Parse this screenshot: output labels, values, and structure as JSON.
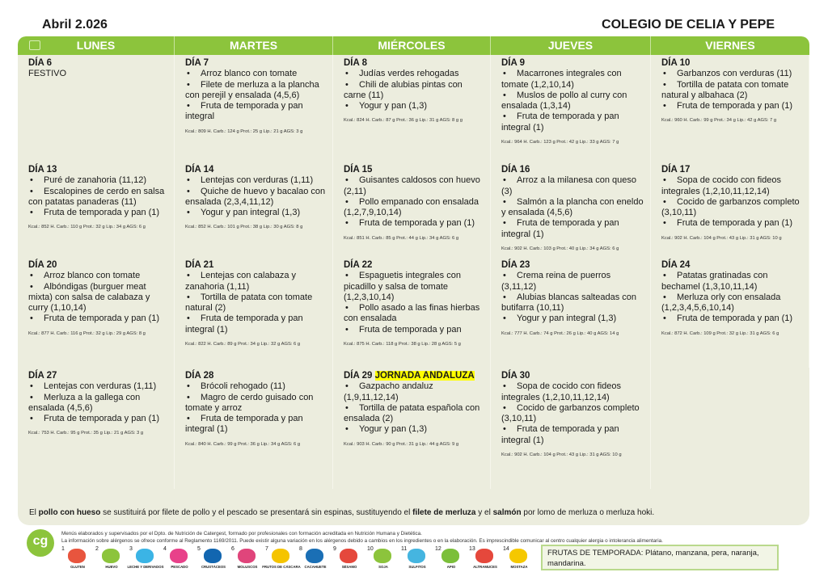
{
  "header": {
    "month": "Abril 2.026",
    "school": "COLEGIO DE CELIA Y PEPE"
  },
  "days_header": [
    "LUNES",
    "MARTES",
    "MIÉRCOLES",
    "JUEVES",
    "VIERNES"
  ],
  "weeks": [
    [
      {
        "day": "DÍA 6",
        "note": "FESTIVO",
        "dishes": [],
        "nutrition": ""
      },
      {
        "day": "DÍA 7",
        "dishes": [
          "Arroz blanco con tomate",
          "Filete de merluza a la plancha con perejil y ensalada (4,5,6)",
          "Fruta de temporada y pan integral"
        ],
        "nutrition": "Kcal.: 809 H. Carb.: 124 g Prot.: 25 g Lip.: 21 g AGS: 3 g"
      },
      {
        "day": "DÍA 8",
        "dishes": [
          "Judías verdes rehogadas",
          "Chili de alubias pintas con carne (11)",
          "Yogur y pan (1,3)"
        ],
        "nutrition": "Kcal.: 824 H. Carb.: 87 g Prot.: 36 g Lip.: 31 g AGS: 8 g g"
      },
      {
        "day": "DÍA 9",
        "dishes": [
          "Macarrones integrales con tomate (1,2,10,14)",
          "Muslos de pollo al curry con ensalada (1,3,14)",
          "Fruta de temporada y pan integral (1)"
        ],
        "nutrition": "Kcal.: 964 H. Carb.: 123 g Prot.: 42 g Lip.: 33 g AGS: 7 g"
      },
      {
        "day": "DÍA 10",
        "dishes": [
          "Garbanzos con verduras (11)",
          "Tortilla de patata con tomate natural y albahaca (2)",
          "Fruta de temporada y pan (1)"
        ],
        "nutrition": "Kcal.: 960 H. Carb.: 99 g Prot.: 34 g Lip.: 42 g AGS: 7 g"
      }
    ],
    [
      {
        "day": "DÍA 13",
        "dishes": [
          "Puré de zanahoria (11,12)",
          "Escalopines de cerdo en salsa con patatas panaderas (11)",
          "Fruta de temporada y pan (1)"
        ],
        "nutrition": "Kcal.: 852 H. Carb.: 110 g Prot.: 32 g Lip.: 34 g AGS: 6 g"
      },
      {
        "day": "DÍA 14",
        "dishes": [
          "Lentejas con verduras (1,11)",
          "Quiche de huevo y bacalao con ensalada (2,3,4,11,12)",
          "Yogur y pan integral (1,3)"
        ],
        "nutrition": "Kcal.: 852 H. Carb.: 101 g Prot.: 38 g Lip.: 30 g AGS: 8 g"
      },
      {
        "day": "DÍA 15",
        "dishes": [
          "Guisantes caldosos con huevo (2,11)",
          "Pollo empanado con ensalada (1,2,7,9,10,14)",
          "Fruta de temporada y pan (1)"
        ],
        "nutrition": "Kcal.: 851 H. Carb.: 85 g Prot.: 44 g Lip.: 34 g AGS: 6 g"
      },
      {
        "day": "DÍA 16",
        "dishes": [
          "Arroz a la milanesa con queso (3)",
          "Salmón a la plancha con eneldo y ensalada  (4,5,6)",
          "Fruta de temporada y pan integral (1)"
        ],
        "nutrition": "Kcal.: 902 H. Carb.: 103 g Prot.: 40 g Lip.: 34 g AGS: 6 g"
      },
      {
        "day": "DÍA 17",
        "dishes": [
          "Sopa de cocido con fideos integrales (1,2,10,11,12,14)",
          "Cocido de garbanzos completo (3,10,11)",
          "Fruta de temporada y pan (1)"
        ],
        "nutrition": "Kcal.: 902 H. Carb.: 104 g Prot.: 43 g Lip.: 31 g AGS: 10 g"
      }
    ],
    [
      {
        "day": "DÍA 20",
        "dishes": [
          "Arroz blanco con tomate",
          "Albóndigas (burguer meat mixta) con salsa de calabaza y curry (1,10,14)",
          "Fruta de temporada y pan (1)"
        ],
        "nutrition": "Kcal.: 877 H. Carb.: 116 g Prot.: 32 g Lip.: 29 g AGS: 8 g"
      },
      {
        "day": "DÍA 21",
        "dishes": [
          "Lentejas con calabaza y zanahoria (1,11)",
          "Tortilla de patata con tomate natural (2)",
          "Fruta de temporada y pan integral (1)"
        ],
        "nutrition": "Kcal.: 822 H. Carb.: 89 g Prot.: 34 g Lip.: 32 g AGS: 6 g"
      },
      {
        "day": "DÍA 22",
        "dishes": [
          "Espaguetis integrales con picadillo y salsa de tomate (1,2,3,10,14)",
          "Pollo asado a las finas hierbas con ensalada",
          "Fruta de temporada y pan"
        ],
        "nutrition": "Kcal.: 875 H. Carb.: 118 g Prot.: 38 g Lip.: 28 g AGS: 5 g"
      },
      {
        "day": "DÍA 23",
        "dishes": [
          "Crema reina de puerros (3,11,12)",
          "Alubias blancas salteadas con butifarra (10,11)",
          "Yogur y pan integral (1,3)"
        ],
        "nutrition": "Kcal.: 777 H. Carb.: 74 g Prot.: 26 g Lip.: 40 g AGS: 14 g"
      },
      {
        "day": "DÍA 24",
        "dishes": [
          "Patatas gratinadas con bechamel (1,3,10,11,14)",
          "Merluza orly con ensalada (1,2,3,4,5,6,10,14)",
          "Fruta de temporada y pan (1)"
        ],
        "nutrition": "Kcal.: 872 H. Carb.: 109 g Prot.: 32 g Lip.: 31 g AGS: 6 g"
      }
    ],
    [
      {
        "day": "DÍA 27",
        "dishes": [
          "Lentejas con verduras (1,11)",
          "Merluza a la gallega con ensalada (4,5,6)",
          "Fruta de temporada y pan (1)"
        ],
        "nutrition": "Kcal.: 753 H. Carb.: 95 g Prot.: 35 g Lip.: 21 g AGS: 3 g"
      },
      {
        "day": "DÍA 28",
        "dishes": [
          "Brócoli rehogado (11)",
          "Magro de cerdo guisado con tomate y arroz",
          "Fruta de temporada y pan integral (1)"
        ],
        "nutrition": "Kcal.: 840 H. Carb.: 99 g Prot.: 36 g Lip.: 34 g AGS: 6 g"
      },
      {
        "day": "DÍA 29",
        "highlight": "JORNADA ANDALUZA",
        "dishes": [
          "Gazpacho andaluz (1,9,11,12,14)",
          "Tortilla de patata española con ensalada (2)",
          "Yogur y pan (1,3)"
        ],
        "nutrition": "Kcal.: 903 H. Carb.: 90 g Prot.: 31 g Lip.: 44 g AGS: 9 g"
      },
      {
        "day": "DÍA 30",
        "dishes": [
          "Sopa de cocido con fideos integrales (1,2,10,11,12,14)",
          "Cocido de garbanzos completo (3,10,11)",
          "Fruta de temporada y pan integral (1)"
        ],
        "nutrition": "Kcal.: 902 H. Carb.: 104 g Prot.: 43 g Lip.: 31 g AGS: 10 g"
      },
      {
        "day": "",
        "dishes": [],
        "nutrition": ""
      }
    ]
  ],
  "note": {
    "p1": "El ",
    "b1": "pollo con hueso",
    "p2": " se sustituirá por filete de pollo y el pescado se presentará sin espinas, sustituyendo el ",
    "b2": "filete de merluza",
    "p3": " y el ",
    "b3": "salmón",
    "p4": " por lomo de merluza o merluza hoki."
  },
  "footer": {
    "logo": "cg",
    "line1": "Menús elaborados y supervisados por el Dpto. de Nutrición de Catergest, formado por profesionales con formación acreditada en Nutrición Humana y Dietética.",
    "line2": "La información sobre alérgenos se ofrece conforme al Reglamento 1169/2011. Puede existir alguna variación en los alérgenos debido a cambios en los ingredientes o en la elaboración. Es imprescindible comunicar al centro cualquier alergia o intolerancia alimentaria.",
    "frutas": "FRUTAS DE TEMPORADA: Plátano, manzana, pera, naranja, mandarina."
  },
  "allergens": [
    {
      "n": "1",
      "label": "GLUTEN",
      "color": "#e8553e"
    },
    {
      "n": "2",
      "label": "HUEVO",
      "color": "#8cc43c"
    },
    {
      "n": "3",
      "label": "LECHE Y DERIVADOS",
      "color": "#3bb4e5"
    },
    {
      "n": "4",
      "label": "PESCADO",
      "color": "#e8418a"
    },
    {
      "n": "5",
      "label": "CRUSTÁCEOS",
      "color": "#1266b0"
    },
    {
      "n": "6",
      "label": "MOLUSCOS",
      "color": "#e0457b"
    },
    {
      "n": "7",
      "label": "FRUTOS DE CÁSCARA",
      "color": "#f5c400"
    },
    {
      "n": "8",
      "label": "CACAHUETE",
      "color": "#1a6fb5"
    },
    {
      "n": "9",
      "label": "SÉSAMO",
      "color": "#e5483c"
    },
    {
      "n": "10",
      "label": "SOJA",
      "color": "#8cc43c"
    },
    {
      "n": "11",
      "label": "SULFITOS",
      "color": "#45b5e0"
    },
    {
      "n": "12",
      "label": "APIO",
      "color": "#7bbf3a"
    },
    {
      "n": "13",
      "label": "ALTRAMUCES",
      "color": "#e5483c"
    },
    {
      "n": "14",
      "label": "MOSTAZA",
      "color": "#f5c800"
    }
  ]
}
